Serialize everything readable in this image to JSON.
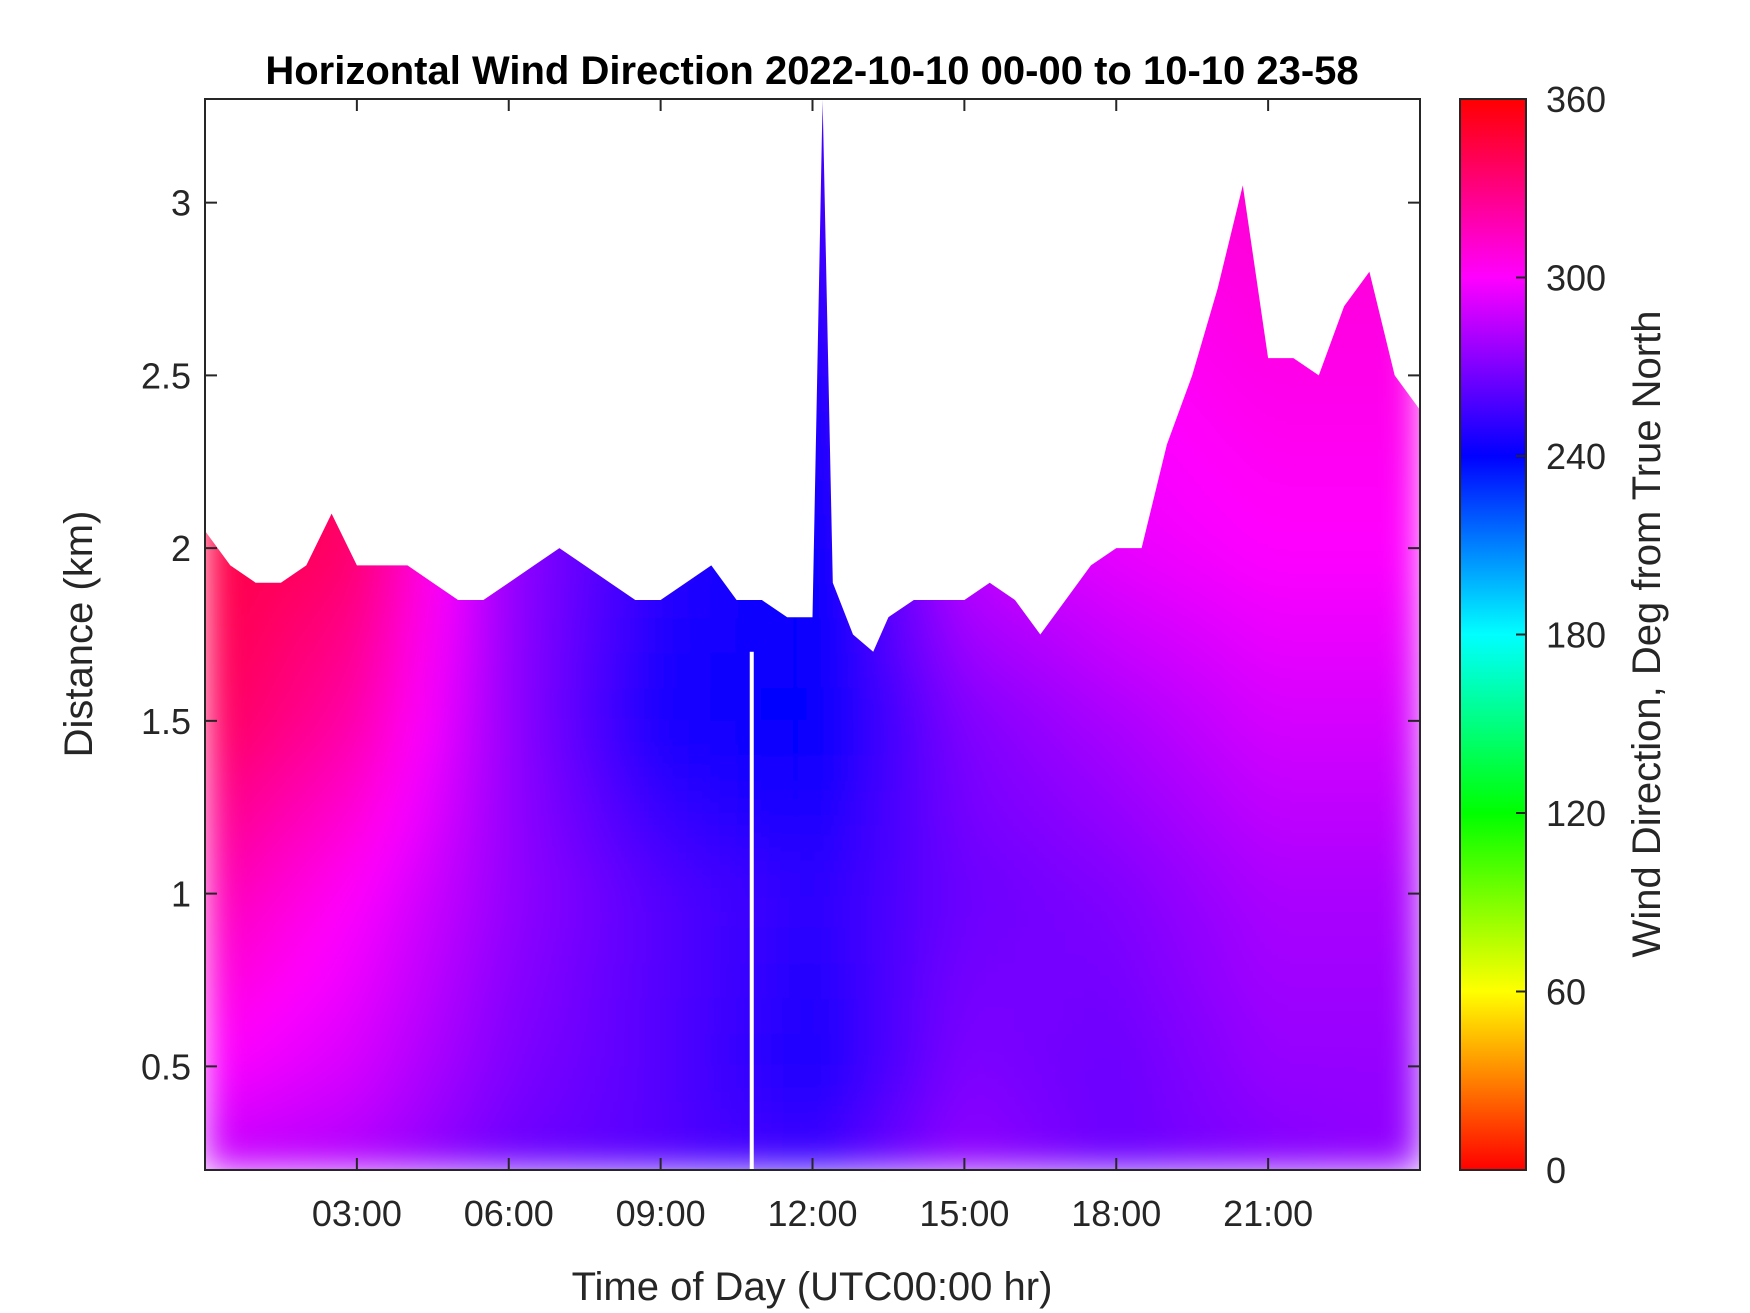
{
  "chart_data": {
    "type": "heatmap",
    "title": "Horizontal Wind Direction 2022-10-10 00-00 to 10-10 23-58",
    "xlabel": "Time of Day (UTC00:00 hr)",
    "ylabel": "Distance (km)",
    "x_unit": "hours",
    "xlim": [
      0,
      24
    ],
    "ylim": [
      0.2,
      3.3
    ],
    "x_ticks": [
      3,
      6,
      9,
      12,
      15,
      18,
      21
    ],
    "x_tick_labels": [
      "03:00",
      "06:00",
      "09:00",
      "12:00",
      "15:00",
      "18:00",
      "21:00"
    ],
    "y_ticks": [
      0.5,
      1,
      1.5,
      2,
      2.5,
      3
    ],
    "y_tick_labels": [
      "0.5",
      "1",
      "1.5",
      "2",
      "2.5",
      "3"
    ],
    "colorbar": {
      "label": "Wind Direction, Deg from True North",
      "range": [
        0,
        360
      ],
      "ticks": [
        0,
        60,
        120,
        180,
        240,
        300,
        360
      ],
      "tick_labels": [
        "0",
        "60",
        "120",
        "180",
        "240",
        "300",
        "360"
      ],
      "colormap": "hsv"
    },
    "data_top_km": [
      [
        0,
        2.05
      ],
      [
        0.5,
        1.95
      ],
      [
        1,
        1.9
      ],
      [
        1.5,
        1.9
      ],
      [
        2,
        1.95
      ],
      [
        2.5,
        2.1
      ],
      [
        3,
        1.95
      ],
      [
        3.5,
        1.95
      ],
      [
        4,
        1.95
      ],
      [
        4.5,
        1.9
      ],
      [
        5,
        1.85
      ],
      [
        5.5,
        1.85
      ],
      [
        6,
        1.9
      ],
      [
        6.5,
        1.95
      ],
      [
        7,
        2.0
      ],
      [
        7.5,
        1.95
      ],
      [
        8,
        1.9
      ],
      [
        8.5,
        1.85
      ],
      [
        9,
        1.85
      ],
      [
        9.5,
        1.9
      ],
      [
        10,
        1.95
      ],
      [
        10.5,
        1.85
      ],
      [
        11,
        1.85
      ],
      [
        11.5,
        1.8
      ],
      [
        12,
        1.8
      ],
      [
        12.2,
        3.3
      ],
      [
        12.4,
        1.9
      ],
      [
        12.8,
        1.75
      ],
      [
        13.2,
        1.7
      ],
      [
        13.5,
        1.8
      ],
      [
        14,
        1.85
      ],
      [
        14.5,
        1.85
      ],
      [
        15,
        1.85
      ],
      [
        15.5,
        1.9
      ],
      [
        16,
        1.85
      ],
      [
        16.5,
        1.75
      ],
      [
        17,
        1.85
      ],
      [
        17.5,
        1.95
      ],
      [
        18,
        2.0
      ],
      [
        18.5,
        2.0
      ],
      [
        19,
        2.3
      ],
      [
        19.5,
        2.5
      ],
      [
        20,
        2.75
      ],
      [
        20.5,
        3.05
      ],
      [
        21,
        2.55
      ],
      [
        21.5,
        2.55
      ],
      [
        22,
        2.5
      ],
      [
        22.5,
        2.7
      ],
      [
        23,
        2.8
      ],
      [
        23.5,
        2.5
      ],
      [
        24,
        2.4
      ]
    ],
    "wind_direction_deg": {
      "x": [
        0,
        3,
        6,
        9,
        12,
        15,
        18,
        21,
        24
      ],
      "y_km": [
        0.2,
        0.5,
        1,
        1.5,
        2,
        2.5,
        3
      ],
      "values": [
        [
          285,
          280,
          265,
          260,
          255,
          275,
          265,
          270,
          275
        ],
        [
          300,
          290,
          270,
          260,
          245,
          270,
          265,
          275,
          275
        ],
        [
          320,
          300,
          275,
          260,
          250,
          265,
          270,
          280,
          280
        ],
        [
          340,
          320,
          275,
          245,
          240,
          270,
          280,
          290,
          290
        ],
        [
          345,
          335,
          275,
          250,
          240,
          285,
          295,
          300,
          300
        ],
        [
          345,
          340,
          285,
          250,
          245,
          290,
          300,
          305,
          305
        ],
        [
          345,
          340,
          290,
          255,
          250,
          295,
          305,
          310,
          310
        ]
      ]
    },
    "gap_x_hours": 10.8
  }
}
